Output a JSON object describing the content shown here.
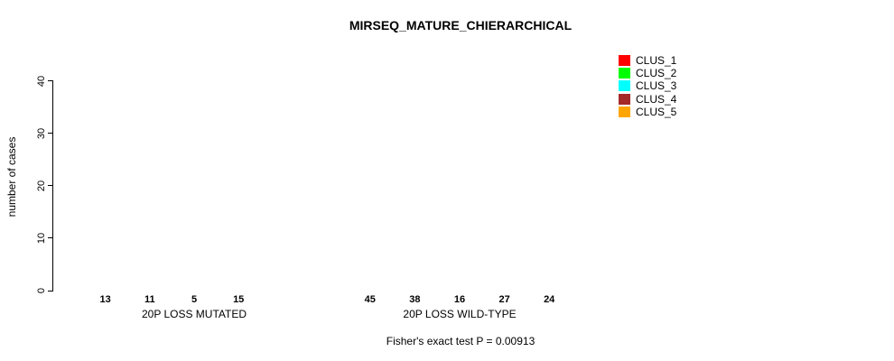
{
  "title": "MIRSEQ_MATURE_CHIERARCHICAL",
  "ylabel": "number of cases",
  "annotation": "Fisher's exact test P = 0.00913",
  "chart_data": {
    "type": "bar",
    "title": "MIRSEQ_MATURE_CHIERARCHICAL",
    "xlabel": "",
    "ylabel": "number of cases",
    "ylim": [
      0,
      45
    ],
    "yticks": [
      0,
      10,
      20,
      30,
      40
    ],
    "grid": false,
    "legend_position": "right",
    "legend": [
      {
        "label": "CLUS_1",
        "color": "#FF0000"
      },
      {
        "label": "CLUS_2",
        "color": "#00FF00"
      },
      {
        "label": "CLUS_3",
        "color": "#00FFFF"
      },
      {
        "label": "CLUS_4",
        "color": "#A52A2A"
      },
      {
        "label": "CLUS_5",
        "color": "#FFA500"
      }
    ],
    "groups": [
      {
        "label": "20P LOSS MUTATED",
        "series": [
          "CLUS_1",
          "CLUS_2",
          "CLUS_3",
          "CLUS_4",
          "CLUS_5"
        ],
        "values": [
          13,
          11,
          5,
          15,
          0
        ],
        "bar_count_labels": [
          "13",
          "11",
          "5",
          "15"
        ]
      },
      {
        "label": "20P LOSS WILD-TYPE",
        "series": [
          "CLUS_1",
          "CLUS_2",
          "CLUS_3",
          "CLUS_4",
          "CLUS_5"
        ],
        "values": [
          45,
          38,
          16,
          27,
          24
        ],
        "bar_count_labels": [
          "45",
          "38",
          "16",
          "27",
          "24"
        ]
      }
    ],
    "annotation": "Fisher's exact test P = 0.00913"
  }
}
